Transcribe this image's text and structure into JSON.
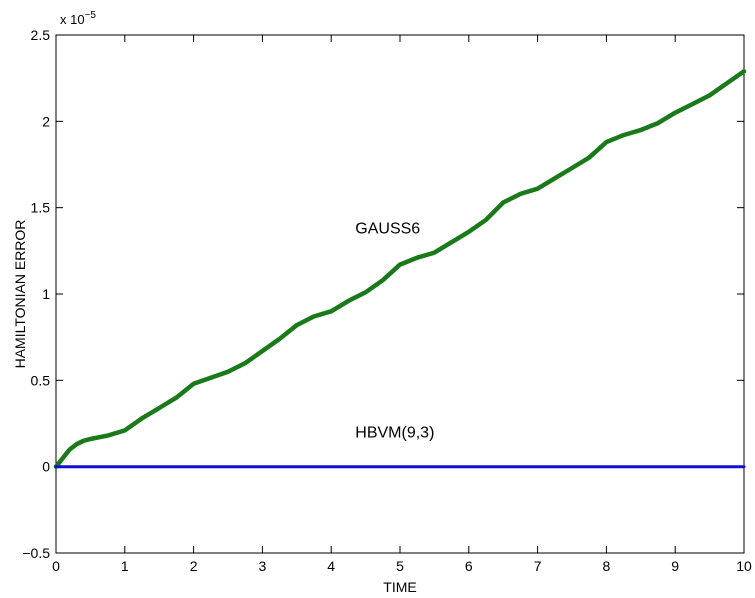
{
  "chart_data": {
    "type": "line",
    "xlabel": "TIME",
    "ylabel": "HAMILTONIAN ERROR",
    "xlim": [
      0,
      10
    ],
    "ylim": [
      -0.5,
      2.5
    ],
    "y_scale_label": "x 10",
    "y_scale_exponent": "−5",
    "xticks": [
      "0",
      "1",
      "2",
      "3",
      "4",
      "5",
      "6",
      "7",
      "8",
      "9",
      "10"
    ],
    "yticks": [
      "−0.5",
      "0",
      "0.5",
      "1",
      "1.5",
      "2",
      "2.5"
    ],
    "grid": false,
    "series": [
      {
        "name": "GAUSS6",
        "color": "#1a7a1a",
        "x": [
          0,
          0.1,
          0.2,
          0.3,
          0.4,
          0.5,
          0.75,
          1.0,
          1.25,
          1.5,
          1.75,
          2.0,
          2.5,
          2.75,
          3.0,
          3.25,
          3.5,
          3.75,
          4.0,
          4.25,
          4.5,
          4.75,
          5.0,
          5.25,
          5.5,
          5.75,
          6.0,
          6.25,
          6.5,
          6.75,
          7.0,
          7.25,
          7.5,
          7.75,
          8.0,
          8.25,
          8.5,
          8.75,
          9.0,
          9.25,
          9.5,
          9.75,
          10.0
        ],
        "y": [
          0,
          0.05,
          0.1,
          0.13,
          0.15,
          0.16,
          0.18,
          0.21,
          0.28,
          0.34,
          0.4,
          0.48,
          0.55,
          0.6,
          0.67,
          0.74,
          0.82,
          0.87,
          0.9,
          0.96,
          1.01,
          1.08,
          1.17,
          1.21,
          1.24,
          1.3,
          1.36,
          1.43,
          1.53,
          1.58,
          1.61,
          1.67,
          1.73,
          1.79,
          1.88,
          1.92,
          1.95,
          1.99,
          2.05,
          2.1,
          2.15,
          2.22,
          2.29
        ]
      },
      {
        "name": "HBVM(9,3)",
        "color": "#1010d0",
        "x": [
          0,
          10
        ],
        "y": [
          0,
          0
        ]
      }
    ],
    "annotations": [
      {
        "text": "GAUSS6",
        "x": 4.35,
        "y": 1.35
      },
      {
        "text": "HBVM(9,3)",
        "x": 4.35,
        "y": 0.17
      }
    ]
  }
}
